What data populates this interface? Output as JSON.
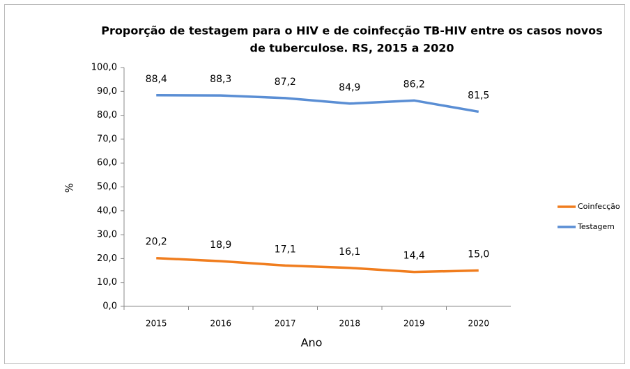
{
  "chart_data": {
    "type": "line",
    "title": [
      "Proporção de testagem para o HIV e de coinfecção TB-HIV entre os casos novos",
      "de tuberculose. RS, 2015 a 2020"
    ],
    "x_label": "Ano",
    "y_label": "%",
    "categories": [
      "2015",
      "2016",
      "2017",
      "2018",
      "2019",
      "2020"
    ],
    "series": [
      {
        "name": "Coinfecção",
        "color": "#f07d1e",
        "values": [
          20.2,
          18.9,
          17.1,
          16.1,
          14.4,
          15.0
        ],
        "value_labels": [
          "20,2",
          "18,9",
          "17,1",
          "16,1",
          "14,4",
          "15,0"
        ]
      },
      {
        "name": "Testagem",
        "color": "#5a8ed4",
        "values": [
          88.4,
          88.3,
          87.2,
          84.9,
          86.2,
          81.5
        ],
        "value_labels": [
          "88,4",
          "88,3",
          "87,2",
          "84,9",
          "86,2",
          "81,5"
        ]
      }
    ],
    "ylim": [
      0,
      100
    ],
    "yticks": [
      {
        "value": 0,
        "label": "0,0"
      },
      {
        "value": 10,
        "label": "10,0"
      },
      {
        "value": 20,
        "label": "20,0"
      },
      {
        "value": 30,
        "label": "30,0"
      },
      {
        "value": 40,
        "label": "40,0"
      },
      {
        "value": 50,
        "label": "50,0"
      },
      {
        "value": 60,
        "label": "60,0"
      },
      {
        "value": 70,
        "label": "70,0"
      },
      {
        "value": 80,
        "label": "80,0"
      },
      {
        "value": 90,
        "label": "90,0"
      },
      {
        "value": 100,
        "label": "100,0"
      }
    ],
    "legend": "right"
  }
}
